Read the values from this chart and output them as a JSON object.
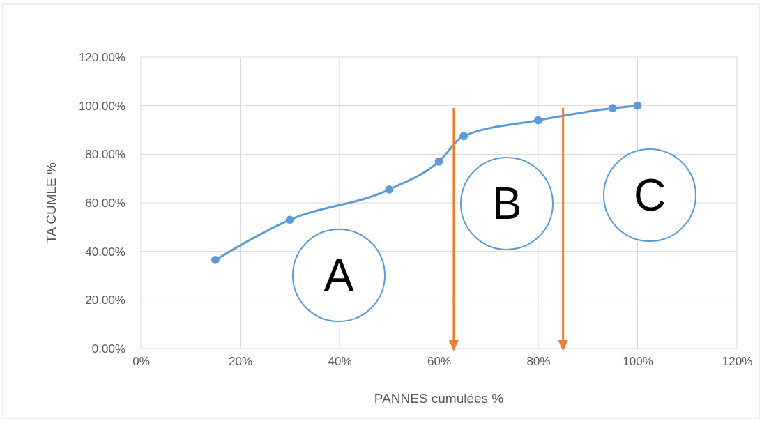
{
  "chart_data": {
    "type": "line",
    "xlabel": "PANNES  cumulées %",
    "ylabel": "TA CUMLE %",
    "x": [
      15,
      30,
      50,
      60,
      65,
      80,
      95,
      100
    ],
    "series": [
      {
        "color": "#5b9bd5",
        "values": [
          36.5,
          53,
          65.5,
          77,
          87.5,
          94,
          99,
          100
        ]
      }
    ],
    "marker": "circle",
    "grid": true,
    "xlim": [
      0,
      120
    ],
    "xticks": [
      {
        "value": 0,
        "label": "0%"
      },
      {
        "value": 20,
        "label": "20%"
      },
      {
        "value": 40,
        "label": "40%"
      },
      {
        "value": 60,
        "label": "60%"
      },
      {
        "value": 80,
        "label": "80%"
      },
      {
        "value": 100,
        "label": "100%"
      },
      {
        "value": 120,
        "label": "120%"
      }
    ],
    "ylim": [
      0,
      120
    ],
    "yticks": [
      {
        "value": 0,
        "label": "0.00%"
      },
      {
        "value": 20,
        "label": "20.00%"
      },
      {
        "value": 40,
        "label": "40.00%"
      },
      {
        "value": 60,
        "label": "60.00%"
      },
      {
        "value": 80,
        "label": "80.00%"
      },
      {
        "value": 100,
        "label": "100.00%"
      },
      {
        "value": 120,
        "label": "120.00%"
      }
    ],
    "ref_lines": [
      {
        "axis": "x",
        "value": 63,
        "color": "#ed7d31"
      },
      {
        "axis": "x",
        "value": 85,
        "color": "#ed7d31"
      }
    ],
    "annotations": [
      "A",
      "B",
      "C"
    ]
  }
}
